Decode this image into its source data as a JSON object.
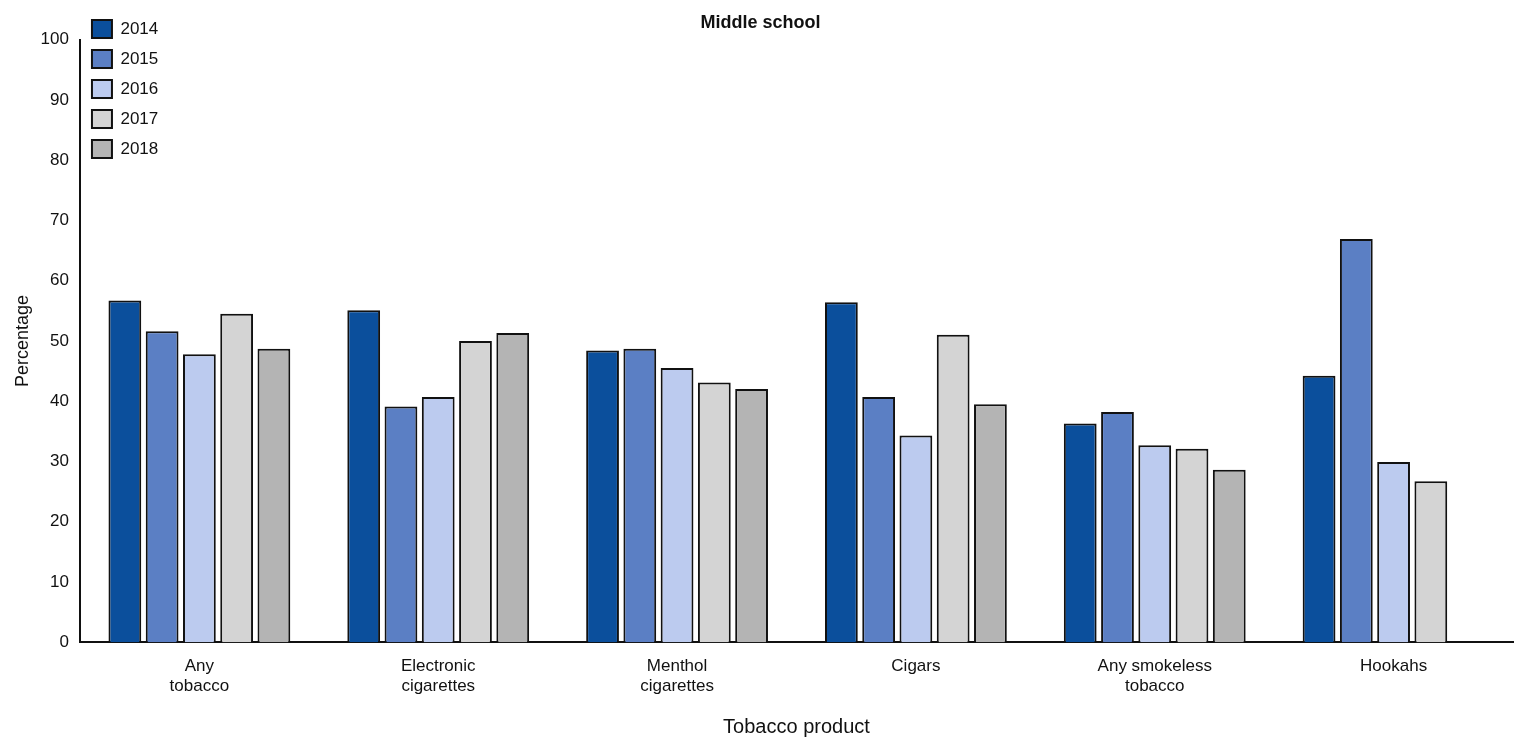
{
  "chart_data": {
    "type": "bar",
    "title": "Middle school",
    "xlabel": "Tobacco product",
    "ylabel": "Percentage",
    "categories": [
      "Any tobacco",
      "Electronic cigarettes",
      "Menthol cigarettes",
      "Cigars",
      "Any smokeless tobacco",
      "Hookahs"
    ],
    "series": [
      {
        "name": "2014",
        "color": "#0b4f9c",
        "values": [
          56.7,
          55.1,
          48.4,
          56.4,
          36.3,
          44.2
        ]
      },
      {
        "name": "2015",
        "color": "#5b7fc4",
        "values": [
          51.6,
          39.1,
          48.7,
          40.7,
          38.2,
          66.9
        ]
      },
      {
        "name": "2016",
        "color": "#bccbef",
        "values": [
          47.8,
          40.7,
          45.5,
          34.3,
          32.7,
          29.9
        ]
      },
      {
        "name": "2017",
        "color": "#d4d4d4",
        "values": [
          54.5,
          50.0,
          43.1,
          51.0,
          32.1,
          26.7
        ]
      },
      {
        "name": "2018",
        "color": "#b4b4b4",
        "values": [
          48.7,
          51.3,
          42.0,
          39.5,
          28.6,
          null
        ]
      }
    ],
    "ylim": [
      0,
      100
    ],
    "yticks": [
      0,
      10,
      20,
      30,
      40,
      50,
      60,
      70,
      80,
      90,
      100
    ],
    "grid": false,
    "legend": "top left"
  }
}
